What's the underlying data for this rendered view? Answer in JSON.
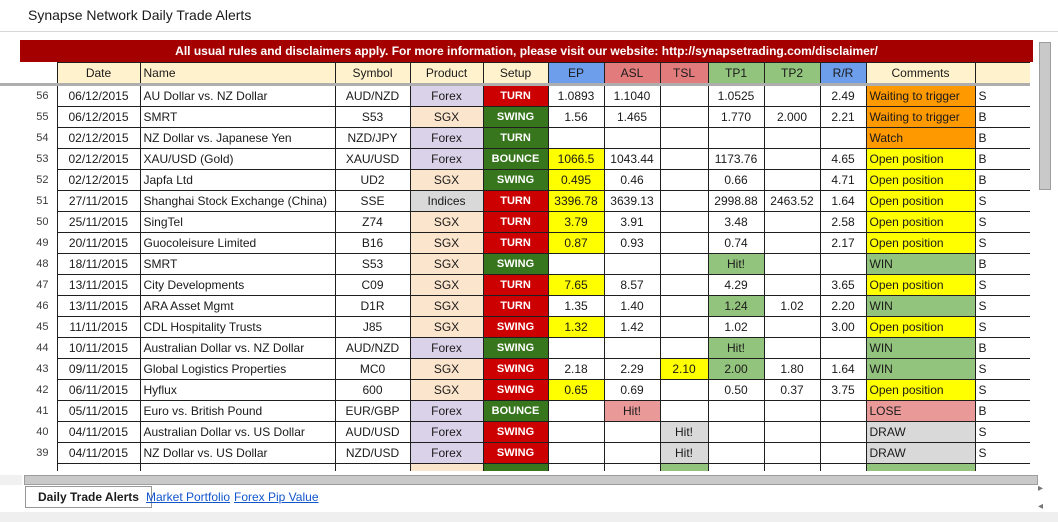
{
  "title": "Synapse Network Daily Trade Alerts",
  "banner": {
    "text": "All usual rules and disclaimers apply. For more information, please visit our website: http://synapsetrading.com/disclaimer/"
  },
  "table": {
    "columns": [
      "Date",
      "Name",
      "Symbol",
      "Product",
      "Setup",
      "EP",
      "ASL",
      "TSL",
      "TP1",
      "TP2",
      "R/R",
      "Comments",
      ""
    ],
    "header_bg": [
      "d",
      "d",
      "d",
      "d",
      "d",
      "blue",
      "salmon",
      "salmon",
      "green",
      "green",
      "blue",
      "d",
      "d"
    ],
    "rows": [
      {
        "n": 56,
        "date": "06/12/2015",
        "name": "AU Dollar vs. NZ Dollar",
        "symbol": "AUD/NZD",
        "product": "Forex",
        "setup": "TURN",
        "setup_color": "red",
        "ep": "1.0893",
        "asl": "1.1040",
        "tp1": "1.0525",
        "rr": "2.49",
        "comment": "Waiting to trigger",
        "comment_hl": "orange",
        "dir": "S"
      },
      {
        "n": 55,
        "date": "06/12/2015",
        "name": "SMRT",
        "symbol": "S53",
        "product": "SGX",
        "setup": "SWING",
        "setup_color": "green",
        "ep": "1.56",
        "asl": "1.465",
        "tp1": "1.770",
        "tp2": "2.000",
        "rr": "2.21",
        "comment": "Waiting to trigger",
        "comment_hl": "orange",
        "dir": "B"
      },
      {
        "n": 54,
        "date": "02/12/2015",
        "name": "NZ Dollar vs. Japanese Yen",
        "symbol": "NZD/JPY",
        "product": "Forex",
        "setup": "TURN",
        "setup_color": "green",
        "comment": "Watch",
        "comment_hl": "orange",
        "dir": "B"
      },
      {
        "n": 53,
        "date": "02/12/2015",
        "name": "XAU/USD (Gold)",
        "symbol": "XAU/USD",
        "product": "Forex",
        "setup": "BOUNCE",
        "setup_color": "green",
        "ep": "1066.5",
        "ep_hl": "yellow",
        "asl": "1043.44",
        "tp1": "1173.76",
        "rr": "4.65",
        "comment": "Open position",
        "comment_hl": "yellow",
        "dir": "B"
      },
      {
        "n": 52,
        "date": "02/12/2015",
        "name": "Japfa Ltd",
        "symbol": "UD2",
        "product": "SGX",
        "setup": "SWING",
        "setup_color": "green",
        "ep": "0.495",
        "ep_hl": "yellow",
        "asl": "0.46",
        "tp1": "0.66",
        "rr": "4.71",
        "comment": "Open position",
        "comment_hl": "yellow",
        "dir": "B"
      },
      {
        "n": 51,
        "date": "27/11/2015",
        "name": "Shanghai Stock Exchange (China)",
        "symbol": "SSE",
        "product": "Indices",
        "setup": "TURN",
        "setup_color": "red",
        "ep": "3396.78",
        "ep_hl": "yellow",
        "asl": "3639.13",
        "tp1": "2998.88",
        "tp2": "2463.52",
        "rr": "1.64",
        "comment": "Open position",
        "comment_hl": "yellow",
        "dir": "S"
      },
      {
        "n": 50,
        "date": "25/11/2015",
        "name": "SingTel",
        "symbol": "Z74",
        "product": "SGX",
        "setup": "TURN",
        "setup_color": "red",
        "ep": "3.79",
        "ep_hl": "yellow",
        "asl": "3.91",
        "tp1": "3.48",
        "rr": "2.58",
        "comment": "Open position",
        "comment_hl": "yellow",
        "dir": "S"
      },
      {
        "n": 49,
        "date": "20/11/2015",
        "name": "Guocoleisure Limited",
        "symbol": "B16",
        "product": "SGX",
        "setup": "TURN",
        "setup_color": "red",
        "ep": "0.87",
        "ep_hl": "yellow",
        "asl": "0.93",
        "tp1": "0.74",
        "rr": "2.17",
        "comment": "Open position",
        "comment_hl": "yellow",
        "dir": "S"
      },
      {
        "n": 48,
        "date": "18/11/2015",
        "name": "SMRT",
        "symbol": "S53",
        "product": "SGX",
        "setup": "SWING",
        "setup_color": "green",
        "tp1": "Hit!",
        "tp1_hl": "green",
        "comment": "WIN",
        "comment_hl": "green",
        "dir": "B"
      },
      {
        "n": 47,
        "date": "13/11/2015",
        "name": "City Developments",
        "symbol": "C09",
        "product": "SGX",
        "setup": "TURN",
        "setup_color": "red",
        "ep": "7.65",
        "ep_hl": "yellow",
        "asl": "8.57",
        "tp1": "4.29",
        "rr": "3.65",
        "comment": "Open position",
        "comment_hl": "yellow",
        "dir": "S"
      },
      {
        "n": 46,
        "date": "13/11/2015",
        "name": "ARA Asset Mgmt",
        "symbol": "D1R",
        "product": "SGX",
        "setup": "TURN",
        "setup_color": "red",
        "ep": "1.35",
        "asl": "1.40",
        "tp1": "1.24",
        "tp1_hl": "green",
        "tp2": "1.02",
        "rr": "2.20",
        "comment": "WIN",
        "comment_hl": "green",
        "dir": "S"
      },
      {
        "n": 45,
        "date": "11/11/2015",
        "name": "CDL Hospitality Trusts",
        "symbol": "J85",
        "product": "SGX",
        "setup": "SWING",
        "setup_color": "red",
        "ep": "1.32",
        "ep_hl": "yellow",
        "asl": "1.42",
        "tp1": "1.02",
        "rr": "3.00",
        "comment": "Open position",
        "comment_hl": "yellow",
        "dir": "S"
      },
      {
        "n": 44,
        "date": "10/11/2015",
        "name": "Australian Dollar vs. NZ Dollar",
        "symbol": "AUD/NZD",
        "product": "Forex",
        "setup": "SWING",
        "setup_color": "green",
        "tp1": "Hit!",
        "tp1_hl": "green",
        "comment": "WIN",
        "comment_hl": "green",
        "dir": "B"
      },
      {
        "n": 43,
        "date": "09/11/2015",
        "name": "Global Logistics Properties",
        "symbol": "MC0",
        "product": "SGX",
        "setup": "SWING",
        "setup_color": "red",
        "ep": "2.18",
        "asl": "2.29",
        "tsl": "2.10",
        "tsl_hl": "yellow",
        "tp1": "2.00",
        "tp1_hl": "green",
        "tp2": "1.80",
        "rr": "1.64",
        "comment": "WIN",
        "comment_hl": "green",
        "dir": "S"
      },
      {
        "n": 42,
        "date": "06/11/2015",
        "name": "Hyflux",
        "symbol": "600",
        "product": "SGX",
        "setup": "SWING",
        "setup_color": "red",
        "ep": "0.65",
        "ep_hl": "yellow",
        "asl": "0.69",
        "tp1": "0.50",
        "tp2": "0.37",
        "rr": "3.75",
        "comment": "Open position",
        "comment_hl": "yellow",
        "dir": "S"
      },
      {
        "n": 41,
        "date": "05/11/2015",
        "name": "Euro vs. British Pound",
        "symbol": "EUR/GBP",
        "product": "Forex",
        "setup": "BOUNCE",
        "setup_color": "green",
        "asl": "Hit!",
        "asl_hl": "pink",
        "comment": "LOSE",
        "comment_hl": "pink",
        "dir": "B"
      },
      {
        "n": 40,
        "date": "04/11/2015",
        "name": "Australian Dollar vs. US Dollar",
        "symbol": "AUD/USD",
        "product": "Forex",
        "setup": "SWING",
        "setup_color": "red",
        "tsl": "Hit!",
        "tsl_hl": "gray",
        "comment": "DRAW",
        "comment_hl": "gray",
        "dir": "S"
      },
      {
        "n": 39,
        "date": "04/11/2015",
        "name": "NZ Dollar vs. US Dollar",
        "symbol": "NZD/USD",
        "product": "Forex",
        "setup": "SWING",
        "setup_color": "red",
        "tsl": "Hit!",
        "tsl_hl": "gray",
        "comment": "DRAW",
        "comment_hl": "gray",
        "dir": "S"
      }
    ],
    "partial_row": {
      "product": "SGX",
      "setup_color": "green",
      "tsl_hl": "green",
      "comment_hl": "green"
    }
  },
  "tabs": [
    {
      "label": "Daily Trade Alerts",
      "active": true
    },
    {
      "label": "Market Portfolio",
      "active": false
    },
    {
      "label": "Forex Pip Value",
      "active": false
    }
  ],
  "icons": {
    "tab_scroll_right": "▸",
    "tab_scroll_left": "◂"
  },
  "colors": {
    "banner_bg": "#A40000",
    "header_default_bg": "#FFF2CC",
    "header_blue": "#6D9EEB",
    "header_salmon": "#E27C7C",
    "header_green": "#93C47D",
    "setup": {
      "red": "#CC0000",
      "green": "#38761D"
    },
    "product": {
      "Forex": "#D9D2E9",
      "SGX": "#FCE5CD",
      "Indices": "#D9D9D9"
    },
    "hl": {
      "yellow": "#FFFF00",
      "orange": "#FF9900",
      "green": "#93C47D",
      "pink": "#EA9999",
      "gray": "#D9D9D9"
    },
    "link": "#1155CC"
  }
}
